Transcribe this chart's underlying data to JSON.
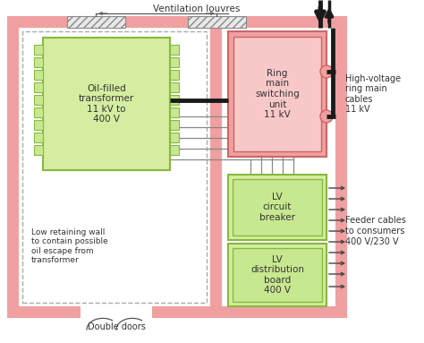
{
  "bg_color": "#ffffff",
  "outer_wall_color": "#f0a0a0",
  "inner_bg_color": "#ffffff",
  "transformer_outer_color": "#d4eda0",
  "transformer_inner_color": "#c8e890",
  "ring_outer_color": "#f0a0a0",
  "ring_inner_color": "#f8c8c8",
  "lv_outer_color": "#d4eda0",
  "lv_inner_color": "#c8e890",
  "cable_color": "#1a1a1a",
  "wire_color": "#555555",
  "text_color": "#333333",
  "ventilation_label": "Ventilation louvres",
  "transformer_label": "Oil-filled\ntransformer\n11 kV to\n400 V",
  "ring_label": "Ring\nmain\nswitching\nunit\n11 kV",
  "lv_cb_label": "LV\ncircuit\nbreaker",
  "lv_db_label": "LV\ndistribution\nboard\n400 V",
  "hv_label": "High-voltage\nring main\ncables\n11 kV",
  "feeder_label": "Feeder cables\nto consumers\n400 V/230 V",
  "retaining_label": "Low retaining wall\nto contain possible\noil escape from\ntransformer",
  "double_doors_label": "Double doors"
}
